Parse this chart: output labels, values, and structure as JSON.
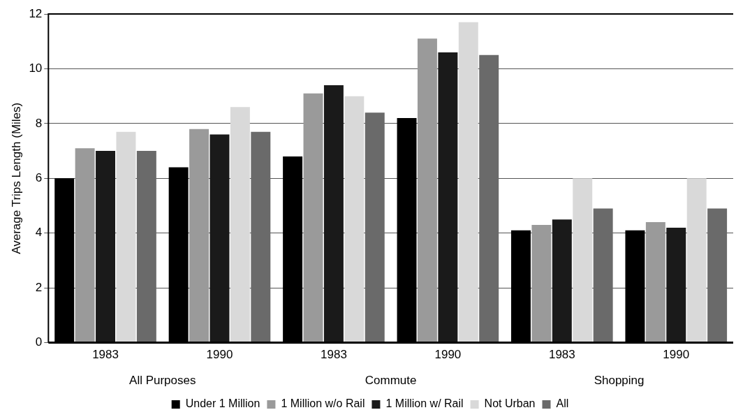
{
  "chart_data": {
    "type": "bar",
    "ylabel": "Average Trips Length (Miles)",
    "categories": [
      "1983",
      "1990",
      "1983",
      "1990",
      "1983",
      "1990"
    ],
    "series": [
      {
        "name": "Under 1 Million",
        "color": "#000000",
        "values": [
          6.0,
          6.4,
          6.8,
          8.2,
          4.1,
          4.1
        ]
      },
      {
        "name": "1 Million w/o Rail",
        "color": "#9a9a9a",
        "values": [
          7.1,
          7.8,
          9.1,
          11.1,
          4.3,
          4.4
        ]
      },
      {
        "name": "1 Million w/ Rail",
        "color": "#1a1a1a",
        "values": [
          7.0,
          7.6,
          9.4,
          10.6,
          4.5,
          4.2
        ]
      },
      {
        "name": "Not Urban",
        "color": "#d9d9d9",
        "values": [
          7.7,
          8.6,
          9.0,
          11.7,
          6.0,
          6.0
        ]
      },
      {
        "name": "All",
        "color": "#6a6a6a",
        "values": [
          7.0,
          7.7,
          8.4,
          10.5,
          4.9,
          4.9
        ]
      }
    ],
    "annotations": [
      "All Purposes",
      "Commute",
      "Shopping"
    ],
    "ylim": [
      0,
      12
    ],
    "yticks": [
      0,
      2,
      4,
      6,
      8,
      10,
      12
    ],
    "grid": "y",
    "legend": "bottom"
  }
}
